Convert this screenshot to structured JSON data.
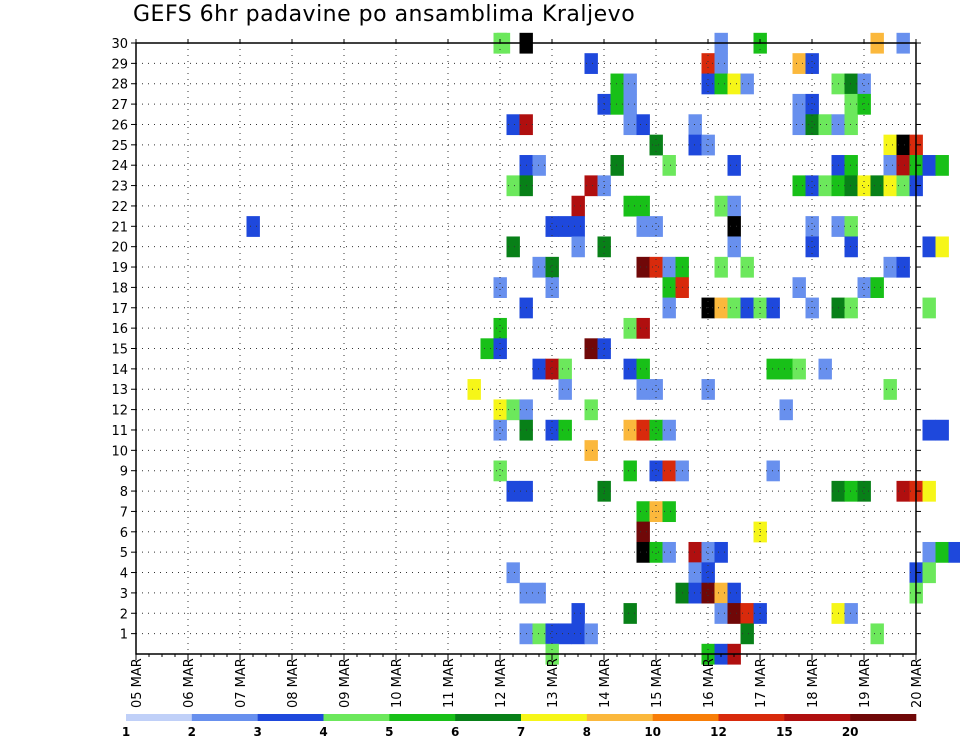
{
  "title": "GEFS 6hr padavine po ansamblima Kraljevo",
  "chart_data": {
    "type": "heatmap",
    "title": "GEFS 6hr padavine po ansamblima Kraljevo",
    "x_tick_labels": [
      "05 MAR",
      "06 MAR",
      "07 MAR",
      "08 MAR",
      "09 MAR",
      "10 MAR",
      "11 MAR",
      "12 MAR",
      "13 MAR",
      "14 MAR",
      "15 MAR",
      "16 MAR",
      "17 MAR",
      "18 MAR",
      "19 MAR",
      "20 MAR"
    ],
    "y_tick_labels": [
      "1",
      "2",
      "3",
      "4",
      "5",
      "6",
      "7",
      "8",
      "9",
      "10",
      "11",
      "12",
      "13",
      "14",
      "15",
      "16",
      "17",
      "18",
      "19",
      "20",
      "21",
      "22",
      "23",
      "24",
      "25",
      "26",
      "27",
      "28",
      "29",
      "30"
    ],
    "x_range_days": [
      0,
      15
    ],
    "y_range": [
      0,
      30
    ],
    "time_step_hours": 6,
    "grid": "dotted",
    "colorbar": {
      "ticks": [
        "1",
        "2",
        "3",
        "4",
        "5",
        "6",
        "7",
        "8",
        "10",
        "12",
        "15",
        "20"
      ],
      "colors": [
        "#c0d0f8",
        "#6890ee",
        "#1e48dc",
        "#6ce85c",
        "#18c018",
        "#088018",
        "#f6f618",
        "#fbb83c",
        "#f87e08",
        "#d82a0c",
        "#b00f0f",
        "#700808"
      ]
    },
    "cells": [
      [
        30,
        27.5,
        3
      ],
      [
        30,
        27.75,
        3
      ],
      [
        30,
        29.5,
        12
      ],
      [
        30,
        44.5,
        1
      ],
      [
        30,
        47.5,
        4
      ],
      [
        30,
        56.5,
        7
      ],
      [
        30,
        58.5,
        1
      ],
      [
        29,
        34.5,
        2
      ],
      [
        29,
        43.5,
        9
      ],
      [
        29,
        44.5,
        1
      ],
      [
        29,
        50.5,
        7
      ],
      [
        29,
        51.5,
        2
      ],
      [
        28,
        36.5,
        4
      ],
      [
        28,
        37.5,
        1
      ],
      [
        28,
        43.5,
        2
      ],
      [
        28,
        44.5,
        4
      ],
      [
        28,
        45.5,
        6
      ],
      [
        28,
        46.5,
        1
      ],
      [
        28,
        53.5,
        3
      ],
      [
        28,
        54.5,
        5
      ],
      [
        28,
        55.5,
        1
      ],
      [
        27,
        35.5,
        2
      ],
      [
        27,
        36.5,
        4
      ],
      [
        27,
        37.5,
        1
      ],
      [
        27,
        50.5,
        1
      ],
      [
        27,
        51.5,
        2
      ],
      [
        27,
        54.5,
        3
      ],
      [
        27,
        55.5,
        4
      ],
      [
        26,
        28.5,
        2
      ],
      [
        26,
        29.5,
        10
      ],
      [
        26,
        37.5,
        1
      ],
      [
        26,
        38.5,
        2
      ],
      [
        26,
        42.5,
        1
      ],
      [
        26,
        50.5,
        1
      ],
      [
        26,
        51.5,
        5
      ],
      [
        26,
        52.5,
        3
      ],
      [
        26,
        53.5,
        1
      ],
      [
        26,
        54.5,
        3
      ],
      [
        25,
        39.5,
        5
      ],
      [
        25,
        42.5,
        2
      ],
      [
        25,
        43.5,
        1
      ],
      [
        25,
        57.5,
        6
      ],
      [
        25,
        58.5,
        12
      ],
      [
        25,
        59.5,
        9
      ],
      [
        24,
        29.5,
        2
      ],
      [
        24,
        30.5,
        1
      ],
      [
        24,
        36.5,
        5
      ],
      [
        24,
        40.5,
        3
      ],
      [
        24,
        45.5,
        2
      ],
      [
        24,
        53.5,
        2
      ],
      [
        24,
        54.5,
        4
      ],
      [
        24,
        57.5,
        1
      ],
      [
        24,
        58.5,
        10
      ],
      [
        24,
        59.5,
        4
      ],
      [
        24,
        60.5,
        2
      ],
      [
        24,
        61.5,
        4
      ],
      [
        23,
        28.5,
        3
      ],
      [
        23,
        29.5,
        5
      ],
      [
        23,
        34.5,
        10
      ],
      [
        23,
        35.5,
        1
      ],
      [
        23,
        50.5,
        4
      ],
      [
        23,
        51.5,
        2
      ],
      [
        23,
        52.5,
        3
      ],
      [
        23,
        53.5,
        4
      ],
      [
        23,
        54.5,
        5
      ],
      [
        23,
        55.5,
        6
      ],
      [
        23,
        56.5,
        5
      ],
      [
        23,
        57.5,
        6
      ],
      [
        23,
        58.5,
        3
      ],
      [
        23,
        59.5,
        2
      ],
      [
        22,
        33.5,
        10
      ],
      [
        22,
        37.5,
        4
      ],
      [
        22,
        38.5,
        4
      ],
      [
        22,
        44.5,
        3
      ],
      [
        22,
        45.5,
        1
      ],
      [
        21,
        8.5,
        2
      ],
      [
        21,
        31.5,
        2
      ],
      [
        21,
        32.5,
        2
      ],
      [
        21,
        33.5,
        2
      ],
      [
        21,
        38.5,
        1
      ],
      [
        21,
        39.5,
        1
      ],
      [
        21,
        45.5,
        12
      ],
      [
        21,
        51.5,
        1
      ],
      [
        21,
        53.5,
        1
      ],
      [
        21,
        54.5,
        3
      ],
      [
        20,
        28.5,
        5
      ],
      [
        20,
        33.5,
        1
      ],
      [
        20,
        35.5,
        5
      ],
      [
        20,
        45.5,
        1
      ],
      [
        20,
        51.5,
        2
      ],
      [
        20,
        54.5,
        2
      ],
      [
        20,
        60.5,
        2
      ],
      [
        20,
        61.5,
        6
      ],
      [
        19,
        30.5,
        1
      ],
      [
        19,
        31.5,
        5
      ],
      [
        19,
        38.5,
        11
      ],
      [
        19,
        39.5,
        9
      ],
      [
        19,
        40.5,
        1
      ],
      [
        19,
        41.5,
        4
      ],
      [
        19,
        44.5,
        3
      ],
      [
        19,
        46.5,
        3
      ],
      [
        19,
        57.5,
        1
      ],
      [
        19,
        58.5,
        2
      ],
      [
        18,
        27.5,
        1
      ],
      [
        18,
        31.5,
        1
      ],
      [
        18,
        40.5,
        4
      ],
      [
        18,
        41.5,
        9
      ],
      [
        18,
        50.5,
        1
      ],
      [
        18,
        55.5,
        1
      ],
      [
        18,
        56.5,
        4
      ],
      [
        17,
        29.5,
        2
      ],
      [
        17,
        40.5,
        1
      ],
      [
        17,
        43.5,
        12
      ],
      [
        17,
        44.5,
        7
      ],
      [
        17,
        45.5,
        3
      ],
      [
        17,
        46.5,
        2
      ],
      [
        17,
        47.5,
        3
      ],
      [
        17,
        48.5,
        2
      ],
      [
        17,
        51.5,
        1
      ],
      [
        17,
        53.5,
        5
      ],
      [
        17,
        54.5,
        3
      ],
      [
        17,
        60.5,
        3
      ],
      [
        16,
        27.5,
        4
      ],
      [
        16,
        37.5,
        3
      ],
      [
        16,
        38.5,
        10
      ],
      [
        15,
        26.5,
        4
      ],
      [
        15,
        27.5,
        2
      ],
      [
        15,
        34.5,
        11
      ],
      [
        15,
        35.5,
        2
      ],
      [
        14,
        30.5,
        2
      ],
      [
        14,
        31.5,
        10
      ],
      [
        14,
        32.5,
        3
      ],
      [
        14,
        37.5,
        2
      ],
      [
        14,
        38.5,
        4
      ],
      [
        14,
        48.5,
        4
      ],
      [
        14,
        49.5,
        4
      ],
      [
        14,
        50.5,
        3
      ],
      [
        14,
        52.5,
        1
      ],
      [
        13,
        25.5,
        6
      ],
      [
        13,
        32.5,
        1
      ],
      [
        13,
        38.5,
        1
      ],
      [
        13,
        39.5,
        1
      ],
      [
        13,
        43.5,
        1
      ],
      [
        13,
        57.5,
        3
      ],
      [
        12,
        27.5,
        6
      ],
      [
        12,
        28.5,
        3
      ],
      [
        12,
        29.5,
        1
      ],
      [
        12,
        34.5,
        3
      ],
      [
        12,
        49.5,
        1
      ],
      [
        11,
        27.5,
        1
      ],
      [
        11,
        29.5,
        5
      ],
      [
        11,
        31.5,
        2
      ],
      [
        11,
        32.5,
        4
      ],
      [
        11,
        37.5,
        7
      ],
      [
        11,
        38.5,
        9
      ],
      [
        11,
        39.5,
        4
      ],
      [
        11,
        40.5,
        1
      ],
      [
        11,
        60.5,
        2
      ],
      [
        11,
        61.5,
        2
      ],
      [
        10,
        34.5,
        7
      ],
      [
        9,
        27.5,
        3
      ],
      [
        9,
        37.5,
        4
      ],
      [
        9,
        39.5,
        2
      ],
      [
        9,
        40.5,
        9
      ],
      [
        9,
        41.5,
        1
      ],
      [
        9,
        48.5,
        1
      ],
      [
        8,
        28.5,
        2
      ],
      [
        8,
        29.5,
        2
      ],
      [
        8,
        35.5,
        5
      ],
      [
        8,
        53.5,
        5
      ],
      [
        8,
        54.5,
        4
      ],
      [
        8,
        55.5,
        5
      ],
      [
        8,
        58.5,
        10
      ],
      [
        8,
        59.5,
        9
      ],
      [
        8,
        60.5,
        6
      ],
      [
        7,
        38.5,
        4
      ],
      [
        7,
        39.5,
        7
      ],
      [
        7,
        40.5,
        4
      ],
      [
        6,
        38.5,
        11
      ],
      [
        6,
        47.5,
        6
      ],
      [
        5,
        38.5,
        12
      ],
      [
        5,
        39.5,
        4
      ],
      [
        5,
        40.5,
        1
      ],
      [
        5,
        42.5,
        10
      ],
      [
        5,
        43.5,
        1
      ],
      [
        5,
        44.5,
        2
      ],
      [
        5,
        60.5,
        1
      ],
      [
        5,
        61.5,
        4
      ],
      [
        5,
        62.5,
        2
      ],
      [
        4,
        28.5,
        1
      ],
      [
        4,
        42.5,
        1
      ],
      [
        4,
        43.5,
        2
      ],
      [
        4,
        59.5,
        2
      ],
      [
        4,
        60.5,
        3
      ],
      [
        3,
        29.5,
        1
      ],
      [
        3,
        30.5,
        1
      ],
      [
        3,
        41.5,
        5
      ],
      [
        3,
        42.5,
        2
      ],
      [
        3,
        43.5,
        11
      ],
      [
        3,
        44.5,
        7
      ],
      [
        3,
        45.5,
        2
      ],
      [
        3,
        59.5,
        3
      ],
      [
        2,
        33.5,
        2
      ],
      [
        2,
        37.5,
        5
      ],
      [
        2,
        44.5,
        1
      ],
      [
        2,
        45.5,
        11
      ],
      [
        2,
        46.5,
        9
      ],
      [
        2,
        47.5,
        2
      ],
      [
        2,
        53.5,
        6
      ],
      [
        2,
        54.5,
        1
      ],
      [
        1,
        29.5,
        1
      ],
      [
        1,
        30.5,
        3
      ],
      [
        1,
        31.5,
        2
      ],
      [
        1,
        32.5,
        2
      ],
      [
        1,
        33.5,
        2
      ],
      [
        1,
        34.5,
        1
      ],
      [
        1,
        46.5,
        5
      ],
      [
        1,
        56.5,
        3
      ],
      [
        0,
        31.5,
        3
      ],
      [
        0,
        43.5,
        4
      ],
      [
        0,
        44.5,
        2
      ],
      [
        0,
        45.5,
        10
      ]
    ]
  }
}
